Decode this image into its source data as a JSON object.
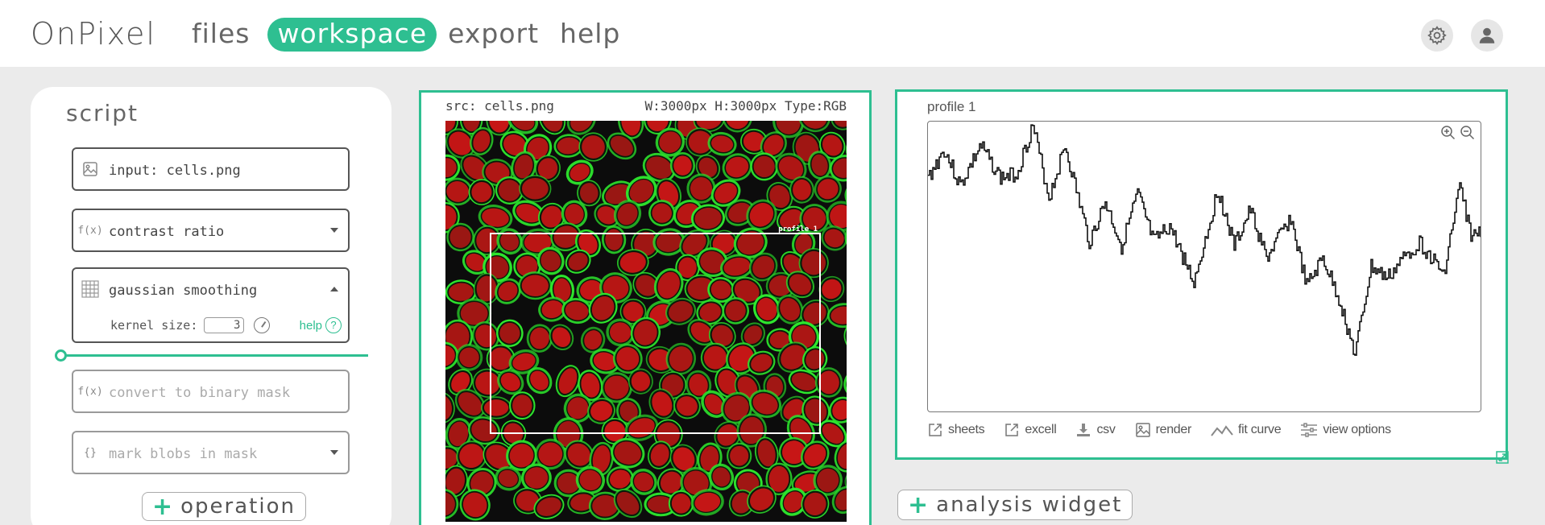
{
  "app": {
    "brand": "OnPixel"
  },
  "nav": {
    "items": [
      "files",
      "workspace",
      "export",
      "help"
    ],
    "active": "workspace"
  },
  "script": {
    "title": "script",
    "operations": [
      {
        "icon": "image-icon",
        "label": "input: cells.png"
      },
      {
        "icon": "function-icon",
        "label": "contrast ratio"
      },
      {
        "icon": "grid-icon",
        "label": "gaussian smoothing",
        "kernel_label": "kernel size:",
        "kernel_value": "3",
        "help_label": "help"
      },
      {
        "icon": "function-icon",
        "label": "convert to binary mask"
      },
      {
        "icon": "braces-icon",
        "label": "mark blobs in mask"
      }
    ],
    "add_label": "operation"
  },
  "image": {
    "src_label": "src: cells.png",
    "meta_label": "W:3000px H:3000px Type:RGB",
    "roi_label": "profile 1"
  },
  "profile": {
    "title": "profile 1",
    "tools": [
      "sheets",
      "excell",
      "csv",
      "render",
      "fit curve",
      "view options"
    ]
  },
  "add_widget_label": "analysis widget",
  "colors": {
    "accent": "#2ebf91",
    "cell_red": "#c81616",
    "membrane_green": "#2ee82e"
  }
}
